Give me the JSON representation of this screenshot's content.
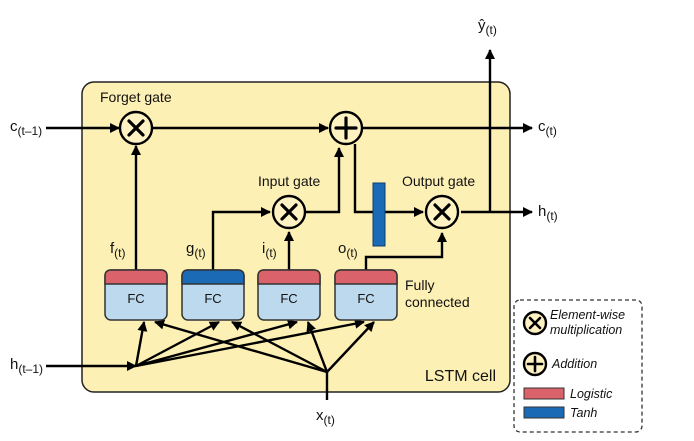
{
  "cell": {
    "title": "LSTM cell"
  },
  "gates": {
    "forget": "Forget gate",
    "input": "Input gate",
    "output": "Output gate"
  },
  "fully_connected": [
    "Fully",
    "connected"
  ],
  "fc_layers": [
    {
      "name": "f",
      "label": "FC",
      "activation": "logistic"
    },
    {
      "name": "g",
      "label": "FC",
      "activation": "tanh"
    },
    {
      "name": "i",
      "label": "FC",
      "activation": "logistic"
    },
    {
      "name": "o",
      "label": "FC",
      "activation": "logistic"
    }
  ],
  "labels": {
    "c_prev": {
      "base": "c",
      "sub": "(t–1)"
    },
    "c_out": {
      "base": "c",
      "sub": "(t)"
    },
    "h_prev": {
      "base": "h",
      "sub": "(t–1)"
    },
    "h_out": {
      "base": "h",
      "sub": "(t)"
    },
    "y_out": {
      "base": "ŷ",
      "sub": "(t)"
    },
    "x_in": {
      "base": "x",
      "sub": "(t)"
    },
    "f": {
      "base": "f",
      "sub": "(t)"
    },
    "g": {
      "base": "g",
      "sub": "(t)"
    },
    "i": {
      "base": "i",
      "sub": "(t)"
    },
    "o": {
      "base": "o",
      "sub": "(t)"
    }
  },
  "legend": {
    "multiply": [
      "Element-wise",
      "multiplication"
    ],
    "add": "Addition",
    "logistic": "Logistic",
    "tanh": "Tanh"
  },
  "colors": {
    "cell_fill": "#fdf0b4",
    "cell_stroke": "#222222",
    "fc_fill": "#bcd9ee",
    "logistic": "#d9626b",
    "tanh": "#1b6ab5",
    "operator_fill": "#fff2c2",
    "line": "#000000"
  }
}
